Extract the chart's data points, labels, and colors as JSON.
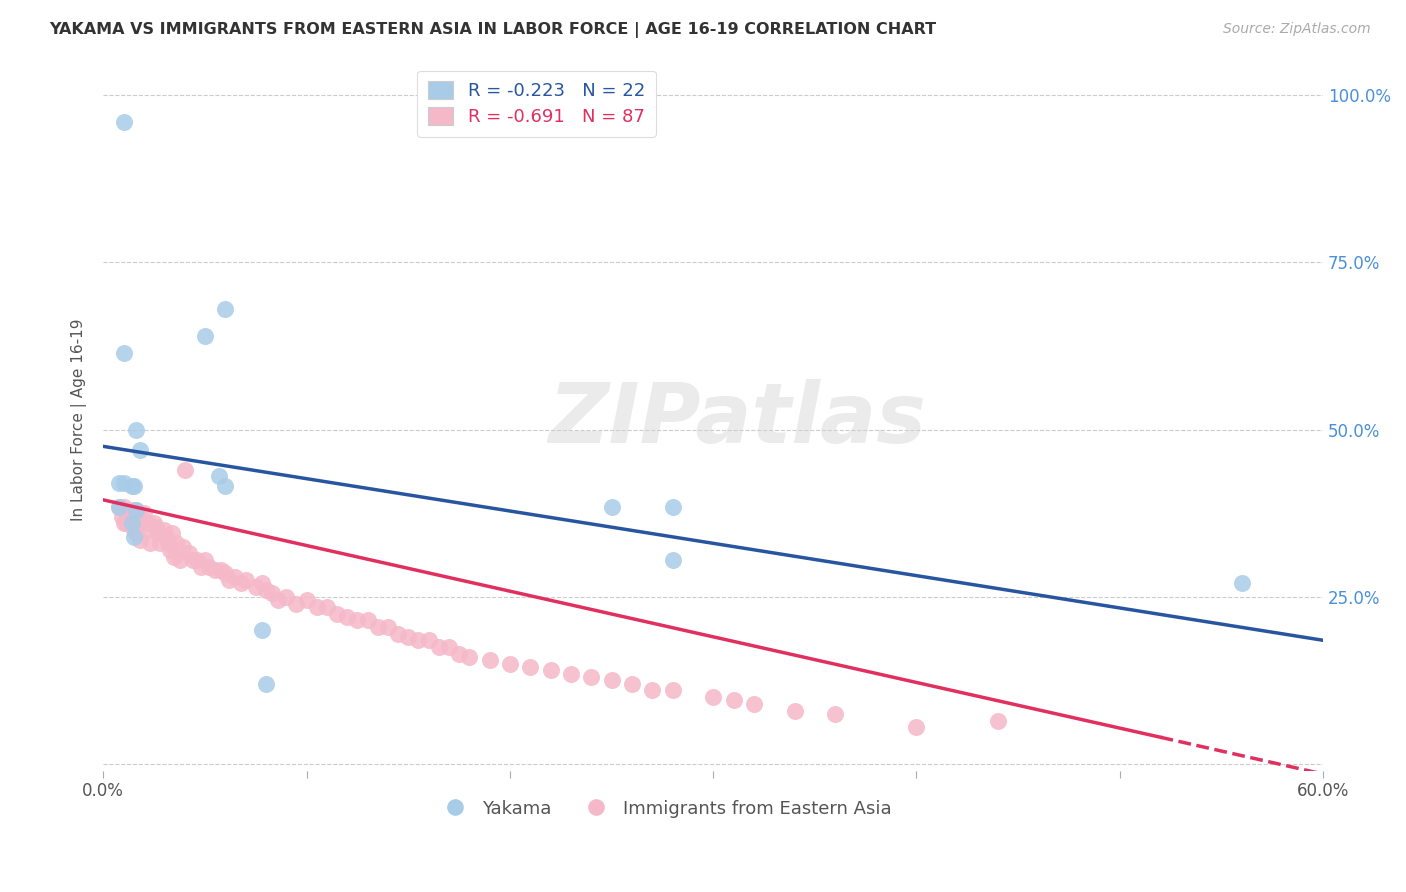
{
  "title": "YAKAMA VS IMMIGRANTS FROM EASTERN ASIA IN LABOR FORCE | AGE 16-19 CORRELATION CHART",
  "source": "Source: ZipAtlas.com",
  "ylabel": "In Labor Force | Age 16-19",
  "xlim": [
    0.0,
    0.6
  ],
  "ylim": [
    -0.01,
    1.04
  ],
  "xtick_positions": [
    0.0,
    0.1,
    0.2,
    0.3,
    0.4,
    0.5,
    0.6
  ],
  "xtick_labels": [
    "0.0%",
    "",
    "",
    "",
    "",
    "",
    "60.0%"
  ],
  "ytick_positions": [
    0.0,
    0.25,
    0.5,
    0.75,
    1.0
  ],
  "ytick_labels_right": [
    "",
    "25.0%",
    "50.0%",
    "75.0%",
    "100.0%"
  ],
  "blue_R": -0.223,
  "blue_N": 22,
  "pink_R": -0.691,
  "pink_N": 87,
  "blue_label": "Yakama",
  "pink_label": "Immigrants from Eastern Asia",
  "blue_color": "#a8cce8",
  "pink_color": "#f5b8c8",
  "blue_line_color": "#2855a0",
  "pink_line_color": "#e03060",
  "background_color": "#ffffff",
  "grid_color": "#cccccc",
  "watermark_text": "ZIPatlas",
  "blue_x": [
    0.008,
    0.01,
    0.008,
    0.014,
    0.015,
    0.016,
    0.014,
    0.015,
    0.016,
    0.018,
    0.05,
    0.06,
    0.06,
    0.08,
    0.078,
    0.25,
    0.28,
    0.01,
    0.01,
    0.057,
    0.28,
    0.56
  ],
  "blue_y": [
    0.42,
    0.42,
    0.385,
    0.415,
    0.415,
    0.38,
    0.36,
    0.34,
    0.5,
    0.47,
    0.64,
    0.68,
    0.415,
    0.12,
    0.2,
    0.385,
    0.385,
    0.96,
    0.615,
    0.43,
    0.305,
    0.27
  ],
  "pink_x": [
    0.008,
    0.009,
    0.01,
    0.01,
    0.011,
    0.012,
    0.013,
    0.014,
    0.015,
    0.015,
    0.016,
    0.016,
    0.017,
    0.018,
    0.018,
    0.02,
    0.021,
    0.022,
    0.023,
    0.025,
    0.026,
    0.027,
    0.028,
    0.03,
    0.031,
    0.032,
    0.033,
    0.034,
    0.035,
    0.036,
    0.038,
    0.039,
    0.04,
    0.042,
    0.044,
    0.046,
    0.048,
    0.05,
    0.052,
    0.055,
    0.058,
    0.06,
    0.062,
    0.065,
    0.068,
    0.07,
    0.075,
    0.078,
    0.08,
    0.083,
    0.086,
    0.09,
    0.095,
    0.1,
    0.105,
    0.11,
    0.115,
    0.12,
    0.125,
    0.13,
    0.135,
    0.14,
    0.145,
    0.15,
    0.155,
    0.16,
    0.165,
    0.17,
    0.175,
    0.18,
    0.19,
    0.2,
    0.21,
    0.22,
    0.23,
    0.24,
    0.25,
    0.26,
    0.27,
    0.28,
    0.3,
    0.31,
    0.32,
    0.34,
    0.36,
    0.4,
    0.44
  ],
  "pink_y": [
    0.385,
    0.37,
    0.385,
    0.36,
    0.36,
    0.38,
    0.37,
    0.36,
    0.38,
    0.35,
    0.38,
    0.345,
    0.36,
    0.37,
    0.335,
    0.375,
    0.35,
    0.36,
    0.33,
    0.36,
    0.355,
    0.345,
    0.33,
    0.35,
    0.34,
    0.33,
    0.32,
    0.345,
    0.31,
    0.33,
    0.305,
    0.325,
    0.44,
    0.315,
    0.305,
    0.305,
    0.295,
    0.305,
    0.295,
    0.29,
    0.29,
    0.285,
    0.275,
    0.28,
    0.27,
    0.275,
    0.265,
    0.27,
    0.26,
    0.255,
    0.245,
    0.25,
    0.24,
    0.245,
    0.235,
    0.235,
    0.225,
    0.22,
    0.215,
    0.215,
    0.205,
    0.205,
    0.195,
    0.19,
    0.185,
    0.185,
    0.175,
    0.175,
    0.165,
    0.16,
    0.155,
    0.15,
    0.145,
    0.14,
    0.135,
    0.13,
    0.125,
    0.12,
    0.11,
    0.11,
    0.1,
    0.095,
    0.09,
    0.08,
    0.075,
    0.055,
    0.065
  ],
  "blue_line_x0": 0.0,
  "blue_line_y0": 0.475,
  "blue_line_x1": 0.6,
  "blue_line_y1": 0.185,
  "pink_line_x0": 0.0,
  "pink_line_y0": 0.395,
  "pink_line_x1_solid": 0.52,
  "pink_line_y1_solid": 0.04,
  "pink_line_x1_dash": 0.6,
  "pink_line_y1_dash": -0.015
}
